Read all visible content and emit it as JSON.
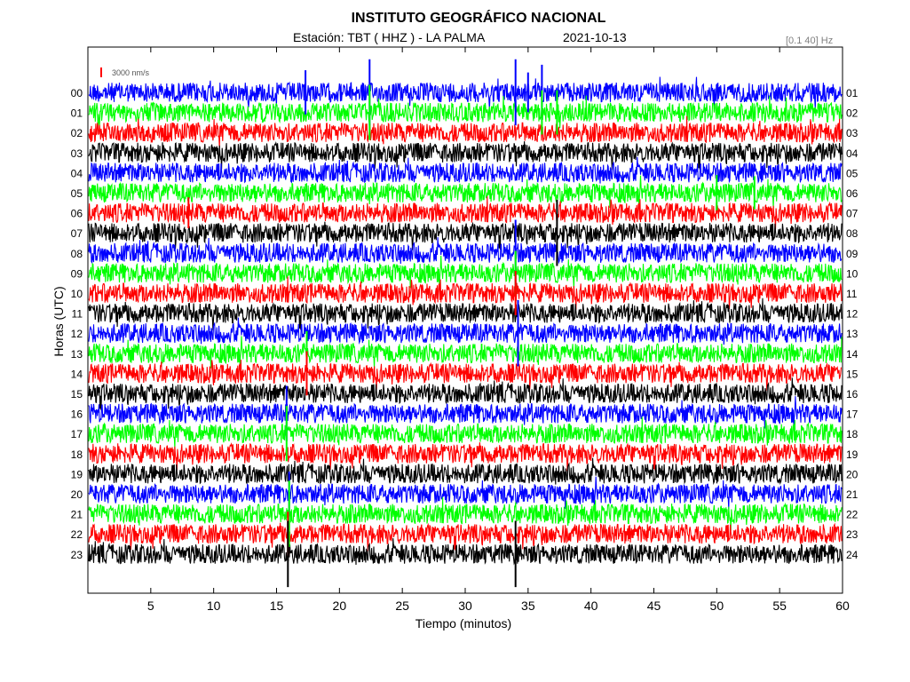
{
  "header": {
    "title": "INSTITUTO GEOGRÁFICO NACIONAL",
    "station": "Estación:  TBT ( HHZ ) - LA PALMA",
    "date": "2021-10-13",
    "filter": "[0.1 40] Hz"
  },
  "chart_data": {
    "type": "line",
    "title": "INSTITUTO GEOGRÁFICO NACIONAL",
    "xlabel": "Tiempo (minutos)",
    "ylabel": "Horas (UTC)",
    "xlim": [
      0,
      60
    ],
    "x_ticks": [
      5,
      10,
      15,
      20,
      25,
      30,
      35,
      40,
      45,
      50,
      55,
      60
    ],
    "left_labels": [
      "00",
      "01",
      "02",
      "03",
      "04",
      "05",
      "06",
      "07",
      "08",
      "09",
      "10",
      "11",
      "12",
      "13",
      "14",
      "15",
      "16",
      "17",
      "18",
      "19",
      "20",
      "21",
      "22",
      "23"
    ],
    "right_labels": [
      "01",
      "02",
      "03",
      "04",
      "05",
      "06",
      "07",
      "08",
      "09",
      "10",
      "11",
      "12",
      "13",
      "14",
      "15",
      "16",
      "17",
      "18",
      "19",
      "20",
      "21",
      "22",
      "23",
      "24"
    ],
    "trace_colors": [
      "#0000ff",
      "#00ff00",
      "#ff0000",
      "#000000"
    ],
    "scale_label": "3000 nm/s",
    "scale_color": "#ff0000",
    "grid": false,
    "events": [
      {
        "hour": 0,
        "minute": 17.3,
        "amp": 2.0
      },
      {
        "hour": 0,
        "minute": 22.4,
        "amp": 3.0
      },
      {
        "hour": 1,
        "minute": 22.4,
        "amp": 2.5
      },
      {
        "hour": 0,
        "minute": 34.0,
        "amp": 3.0
      },
      {
        "hour": 0,
        "minute": 35.0,
        "amp": 1.8
      },
      {
        "hour": 0,
        "minute": 36.1,
        "amp": 2.5
      },
      {
        "hour": 1,
        "minute": 36.1,
        "amp": 2.0
      },
      {
        "hour": 1,
        "minute": 37.3,
        "amp": 2.0
      },
      {
        "hour": 5,
        "minute": 50.0,
        "amp": 1.6
      },
      {
        "hour": 5,
        "minute": 53.0,
        "amp": 1.5
      },
      {
        "hour": 6,
        "minute": 8.0,
        "amp": 1.4
      },
      {
        "hour": 7,
        "minute": 37.3,
        "amp": 3.0
      },
      {
        "hour": 8,
        "minute": 34.0,
        "amp": 3.0
      },
      {
        "hour": 9,
        "minute": 34.0,
        "amp": 2.0
      },
      {
        "hour": 10,
        "minute": 34.0,
        "amp": 2.0
      },
      {
        "hour": 12,
        "minute": 34.2,
        "amp": 3.0
      },
      {
        "hour": 13,
        "minute": 17.4,
        "amp": 2.0
      },
      {
        "hour": 14,
        "minute": 17.4,
        "amp": 2.0
      },
      {
        "hour": 16,
        "minute": 15.8,
        "amp": 2.5
      },
      {
        "hour": 17,
        "minute": 15.8,
        "amp": 2.5
      },
      {
        "hour": 20,
        "minute": 16.0,
        "amp": 2.0
      },
      {
        "hour": 21,
        "minute": 16.0,
        "amp": 3.0
      },
      {
        "hour": 22,
        "minute": 15.9,
        "amp": 2.0
      },
      {
        "hour": 23,
        "minute": 15.9,
        "amp": 3.0
      },
      {
        "hour": 23,
        "minute": 34.0,
        "amp": 3.0
      }
    ]
  }
}
